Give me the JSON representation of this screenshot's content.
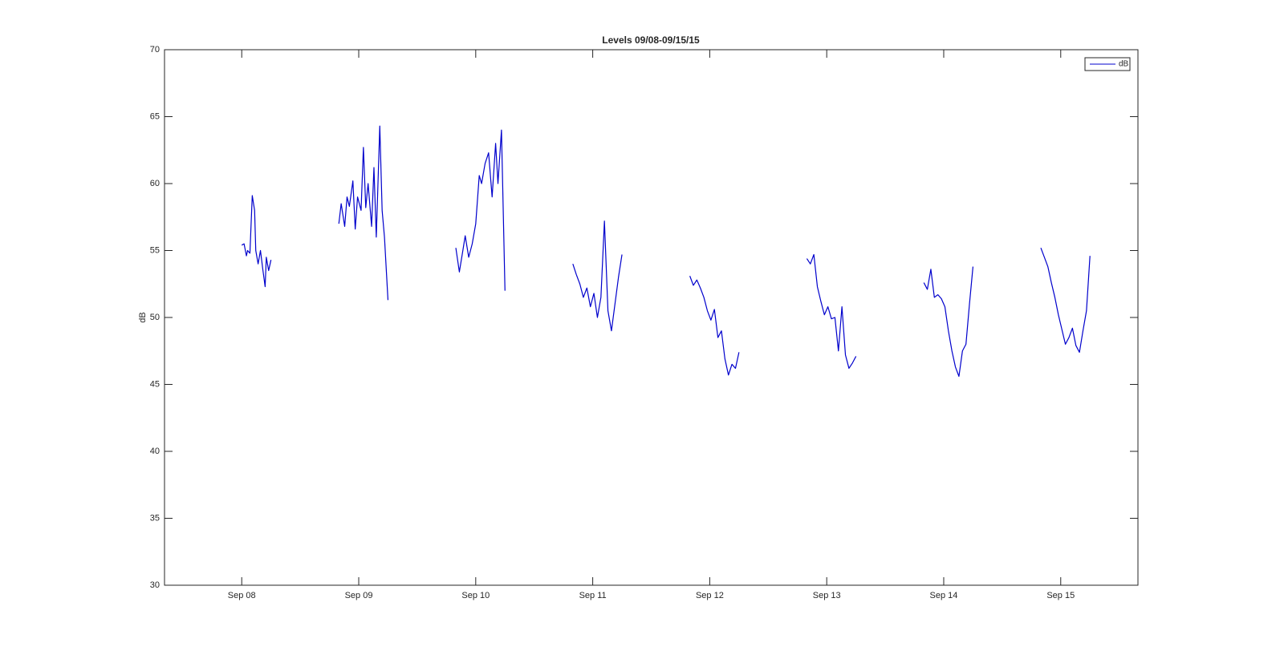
{
  "chart_data": {
    "type": "line",
    "title": "Levels 09/08-09/15/15",
    "y_label": "dB",
    "x": [
      8.0,
      8.02,
      8.04,
      8.05,
      8.07,
      8.09,
      8.11,
      8.12,
      8.14,
      8.16,
      8.18,
      8.2,
      8.21,
      8.23,
      8.25,
      null,
      8.83,
      8.85,
      8.88,
      8.9,
      8.92,
      8.95,
      8.97,
      8.99,
      9.02,
      9.04,
      9.06,
      9.08,
      9.11,
      9.13,
      9.15,
      9.18,
      9.2,
      9.22,
      9.25,
      null,
      9.83,
      9.86,
      9.89,
      9.91,
      9.94,
      9.97,
      10.0,
      10.03,
      10.05,
      10.08,
      10.11,
      10.14,
      10.17,
      10.19,
      10.22,
      10.25,
      null,
      10.83,
      10.86,
      10.89,
      10.92,
      10.95,
      10.98,
      11.01,
      11.04,
      11.07,
      11.1,
      11.13,
      11.16,
      11.19,
      11.22,
      11.25,
      null,
      11.83,
      11.86,
      11.89,
      11.92,
      11.95,
      11.98,
      12.01,
      12.04,
      12.07,
      12.1,
      12.13,
      12.16,
      12.19,
      12.22,
      12.25,
      null,
      12.83,
      12.86,
      12.89,
      12.92,
      12.95,
      12.98,
      13.01,
      13.04,
      13.07,
      13.1,
      13.13,
      13.16,
      13.19,
      13.22,
      13.25,
      null,
      13.83,
      13.86,
      13.89,
      13.92,
      13.95,
      13.98,
      14.01,
      14.04,
      14.07,
      14.1,
      14.13,
      14.16,
      14.19,
      14.22,
      14.25,
      null,
      14.83,
      14.86,
      14.89,
      14.92,
      14.95,
      14.98,
      15.01,
      15.04,
      15.07,
      15.1,
      15.13,
      15.16,
      15.19,
      15.22,
      15.25
    ],
    "series": [
      {
        "name": "dB",
        "color": "#0000cc",
        "values": [
          55.4,
          55.5,
          54.6,
          55,
          54.8,
          59.1,
          58,
          55,
          54,
          55,
          53.6,
          52.3,
          54.5,
          53.5,
          54.3,
          null,
          57,
          58.5,
          56.8,
          59,
          58.3,
          60.2,
          56.6,
          59,
          58,
          62.7,
          58.2,
          60,
          56.8,
          61.2,
          56,
          64.3,
          58,
          56,
          51.3,
          null,
          55.2,
          53.4,
          55,
          56.1,
          54.5,
          55.5,
          57,
          60.6,
          60,
          61.5,
          62.3,
          59,
          63,
          60,
          64,
          52,
          null,
          54,
          53.2,
          52.5,
          51.5,
          52.2,
          50.8,
          51.8,
          50,
          51.5,
          57.2,
          50.5,
          49,
          51,
          53,
          54.7,
          null,
          53.1,
          52.4,
          52.8,
          52.2,
          51.5,
          50.5,
          49.8,
          50.6,
          48.5,
          49,
          46.9,
          45.7,
          46.5,
          46.2,
          47.4,
          null,
          54.4,
          54,
          54.7,
          52.3,
          51.2,
          50.2,
          50.8,
          49.9,
          50,
          47.5,
          50.8,
          47.2,
          46.2,
          46.6,
          47.1,
          null,
          52.6,
          52.1,
          53.6,
          51.5,
          51.7,
          51.4,
          50.8,
          49,
          47.5,
          46.3,
          45.6,
          47.5,
          48,
          51,
          53.8,
          null,
          55.2,
          54.5,
          53.8,
          52.6,
          51.5,
          50.2,
          49.1,
          48,
          48.5,
          49.2,
          47.9,
          47.4,
          49,
          50.5,
          54.6
        ]
      }
    ],
    "xlim": [
      7.34,
      15.66
    ],
    "xticks": [
      {
        "value": 8,
        "label": "Sep 08"
      },
      {
        "value": 9,
        "label": "Sep 09"
      },
      {
        "value": 10,
        "label": "Sep 10"
      },
      {
        "value": 11,
        "label": "Sep 11"
      },
      {
        "value": 12,
        "label": "Sep 12"
      },
      {
        "value": 13,
        "label": "Sep 13"
      },
      {
        "value": 14,
        "label": "Sep 14"
      },
      {
        "value": 15,
        "label": "Sep 15"
      }
    ],
    "ylim": [
      30,
      70
    ],
    "yticks": [
      30,
      35,
      40,
      45,
      50,
      55,
      60,
      65,
      70
    ],
    "grid": false,
    "legend": "top-right"
  }
}
